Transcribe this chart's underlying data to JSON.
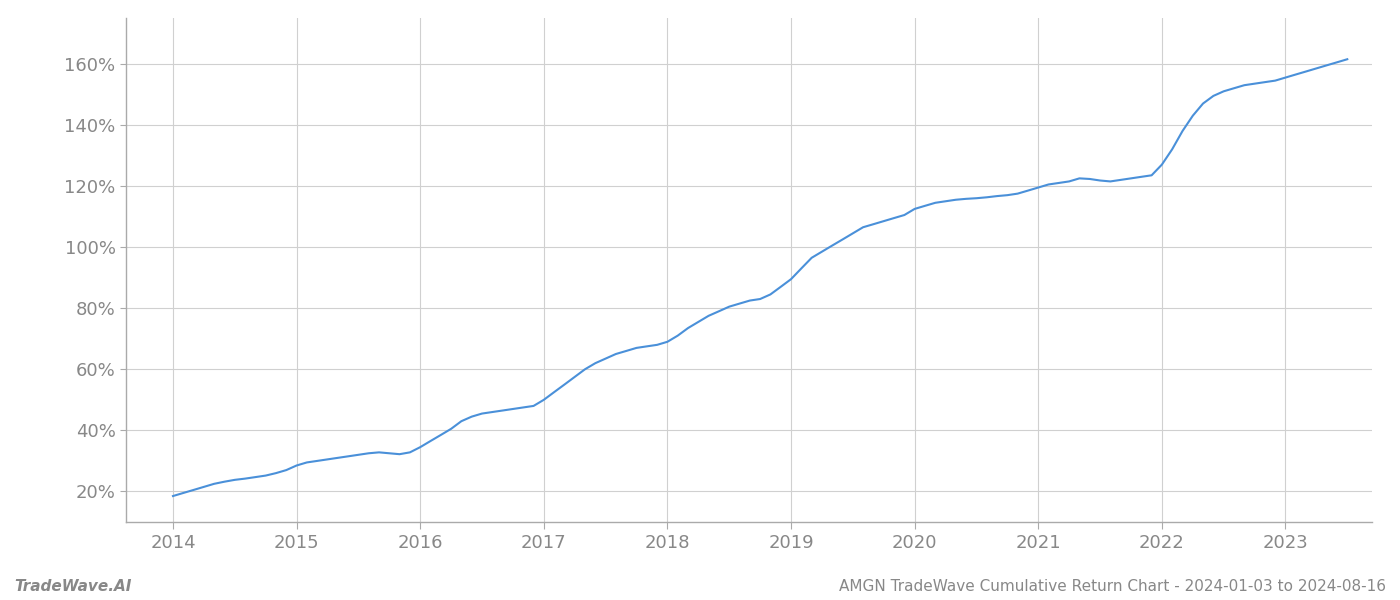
{
  "title": "AMGN TradeWave Cumulative Return Chart - 2024-01-03 to 2024-08-16",
  "watermark": "TradeWave.AI",
  "line_color": "#4a90d9",
  "background_color": "#ffffff",
  "grid_color": "#d0d0d0",
  "tick_color": "#888888",
  "spine_color": "#aaaaaa",
  "x_years": [
    2014,
    2015,
    2016,
    2017,
    2018,
    2019,
    2020,
    2021,
    2022,
    2023
  ],
  "x_data": [
    2014.0,
    2014.083,
    2014.167,
    2014.25,
    2014.333,
    2014.417,
    2014.5,
    2014.583,
    2014.667,
    2014.75,
    2014.833,
    2014.917,
    2015.0,
    2015.083,
    2015.167,
    2015.25,
    2015.333,
    2015.417,
    2015.5,
    2015.583,
    2015.667,
    2015.75,
    2015.833,
    2015.917,
    2016.0,
    2016.083,
    2016.167,
    2016.25,
    2016.333,
    2016.417,
    2016.5,
    2016.583,
    2016.667,
    2016.75,
    2016.833,
    2016.917,
    2017.0,
    2017.083,
    2017.167,
    2017.25,
    2017.333,
    2017.417,
    2017.5,
    2017.583,
    2017.667,
    2017.75,
    2017.833,
    2017.917,
    2018.0,
    2018.083,
    2018.167,
    2018.25,
    2018.333,
    2018.417,
    2018.5,
    2018.583,
    2018.667,
    2018.75,
    2018.833,
    2018.917,
    2019.0,
    2019.083,
    2019.167,
    2019.25,
    2019.333,
    2019.417,
    2019.5,
    2019.583,
    2019.667,
    2019.75,
    2019.833,
    2019.917,
    2020.0,
    2020.083,
    2020.167,
    2020.25,
    2020.333,
    2020.417,
    2020.5,
    2020.583,
    2020.667,
    2020.75,
    2020.833,
    2020.917,
    2021.0,
    2021.083,
    2021.167,
    2021.25,
    2021.333,
    2021.417,
    2021.5,
    2021.583,
    2021.667,
    2021.75,
    2021.833,
    2021.917,
    2022.0,
    2022.083,
    2022.167,
    2022.25,
    2022.333,
    2022.417,
    2022.5,
    2022.583,
    2022.667,
    2022.75,
    2022.833,
    2022.917,
    2023.0,
    2023.083,
    2023.167,
    2023.25,
    2023.333,
    2023.417,
    2023.5
  ],
  "y_data": [
    18.5,
    19.5,
    20.5,
    21.5,
    22.5,
    23.2,
    23.8,
    24.2,
    24.7,
    25.2,
    26.0,
    27.0,
    28.5,
    29.5,
    30.0,
    30.5,
    31.0,
    31.5,
    32.0,
    32.5,
    32.8,
    32.5,
    32.2,
    32.8,
    34.5,
    36.5,
    38.5,
    40.5,
    43.0,
    44.5,
    45.5,
    46.0,
    46.5,
    47.0,
    47.5,
    48.0,
    50.0,
    52.5,
    55.0,
    57.5,
    60.0,
    62.0,
    63.5,
    65.0,
    66.0,
    67.0,
    67.5,
    68.0,
    69.0,
    71.0,
    73.5,
    75.5,
    77.5,
    79.0,
    80.5,
    81.5,
    82.5,
    83.0,
    84.5,
    87.0,
    89.5,
    93.0,
    96.5,
    98.5,
    100.5,
    102.5,
    104.5,
    106.5,
    107.5,
    108.5,
    109.5,
    110.5,
    112.5,
    113.5,
    114.5,
    115.0,
    115.5,
    115.8,
    116.0,
    116.3,
    116.7,
    117.0,
    117.5,
    118.5,
    119.5,
    120.5,
    121.0,
    121.5,
    122.5,
    122.3,
    121.8,
    121.5,
    122.0,
    122.5,
    123.0,
    123.5,
    127.0,
    132.0,
    138.0,
    143.0,
    147.0,
    149.5,
    151.0,
    152.0,
    153.0,
    153.5,
    154.0,
    154.5,
    155.5,
    156.5,
    157.5,
    158.5,
    159.5,
    160.5,
    161.5
  ],
  "ylim": [
    10,
    175
  ],
  "yticks": [
    20,
    40,
    60,
    80,
    100,
    120,
    140,
    160
  ],
  "xlim": [
    2013.62,
    2023.7
  ],
  "tick_fontsize": 13,
  "footer_fontsize": 11,
  "line_width": 1.5
}
